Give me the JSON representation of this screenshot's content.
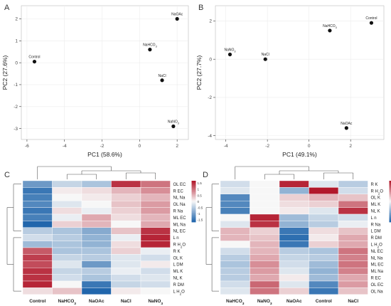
{
  "panel_labels": [
    "A",
    "B",
    "C",
    "D"
  ],
  "colors": {
    "panel_bg": "#ffffff",
    "grid": "#ececec",
    "axis": "#333333",
    "point": "#111111",
    "heat_low": "#2166ac",
    "heat_mid": "#f7f7f7",
    "heat_high": "#b2182b"
  },
  "chart_data": [
    {
      "type": "scatter",
      "panel": "A",
      "title": "",
      "xlabel": "PC1 (58.6%)",
      "ylabel": "PC2 (27.6%)",
      "xlim": [
        -6.3,
        2.6
      ],
      "ylim": [
        -3.5,
        2.6
      ],
      "xticks": [
        -6,
        -4,
        -2,
        0,
        2
      ],
      "yticks": [
        -3,
        -2,
        -1,
        0,
        1,
        2
      ],
      "grid": true,
      "points": [
        {
          "label": "NaOAc",
          "x": 2.0,
          "y": 2.0
        },
        {
          "label": "Control",
          "x": -5.6,
          "y": 0.05
        },
        {
          "label": "NaHCO3",
          "x": 0.55,
          "y": 0.6
        },
        {
          "label": "NaCl",
          "x": 1.2,
          "y": -0.8
        },
        {
          "label": "NaNO3",
          "x": 1.8,
          "y": -2.9
        }
      ]
    },
    {
      "type": "scatter",
      "panel": "B",
      "title": "",
      "xlabel": "PC1 (49.1%)",
      "ylabel": "PC2 (27.7%)",
      "xlim": [
        -4.5,
        3.6
      ],
      "ylim": [
        -4.2,
        2.8
      ],
      "xticks": [
        -4,
        -2,
        0,
        2
      ],
      "yticks": [
        -4,
        -2,
        0,
        2
      ],
      "grid": true,
      "points": [
        {
          "label": "Control",
          "x": 3.0,
          "y": 1.9
        },
        {
          "label": "NaHCO3",
          "x": 1.0,
          "y": 1.5
        },
        {
          "label": "NaNO3",
          "x": -3.8,
          "y": 0.25
        },
        {
          "label": "NaCl",
          "x": -2.1,
          "y": 0.0
        },
        {
          "label": "NaOAc",
          "x": 1.8,
          "y": -3.6
        }
      ]
    },
    {
      "type": "heatmap",
      "panel": "C",
      "title": "",
      "columns": [
        "Control",
        "NaHCO3",
        "NaOAc",
        "NaCl",
        "NaNO3"
      ],
      "rows": [
        "OL EC",
        "R EC",
        "NL Na",
        "OL Na",
        "R Na",
        "ML EC",
        "ML Na",
        "NL EC",
        "L n",
        "R H2O",
        "R K",
        "OL K",
        "L DM",
        "ML K",
        "NL K",
        "R DM",
        "L H2O"
      ],
      "values": [
        [
          -1.1,
          -0.4,
          -0.6,
          1.5,
          1.0
        ],
        [
          -1.5,
          0.1,
          0.2,
          0.5,
          0.8
        ],
        [
          -1.4,
          0.0,
          0.1,
          0.3,
          0.5
        ],
        [
          -1.3,
          -0.2,
          0.0,
          0.4,
          0.7
        ],
        [
          -1.5,
          0.2,
          -0.1,
          0.3,
          0.7
        ],
        [
          -1.4,
          -0.1,
          0.6,
          0.2,
          0.5
        ],
        [
          -1.7,
          0.3,
          0.5,
          0.0,
          0.6
        ],
        [
          -0.5,
          -0.6,
          -0.9,
          0.4,
          1.5
        ],
        [
          -0.3,
          -0.5,
          -0.8,
          -0.1,
          1.6
        ],
        [
          -0.7,
          -0.6,
          -0.8,
          0.2,
          1.6
        ],
        [
          1.2,
          -0.6,
          -0.6,
          0.3,
          -0.1
        ],
        [
          1.4,
          -0.4,
          -0.5,
          -0.2,
          -0.3
        ],
        [
          1.3,
          -0.2,
          -1.1,
          -0.2,
          0.1
        ],
        [
          1.5,
          -0.4,
          -0.5,
          -0.1,
          -0.3
        ],
        [
          1.5,
          -0.3,
          -0.6,
          -0.3,
          -0.2
        ],
        [
          1.6,
          0.0,
          -1.5,
          -0.4,
          -0.3
        ],
        [
          0.2,
          0.4,
          -1.7,
          0.1,
          0.0
        ]
      ],
      "legend_ticks": [
        1.5,
        1,
        0.5,
        0,
        -0.5,
        -1,
        -1.5
      ],
      "value_range": [
        -1.7,
        1.7
      ]
    },
    {
      "type": "heatmap",
      "panel": "D",
      "title": "",
      "columns": [
        "NaHCO3",
        "NaNO3",
        "NaOAc",
        "Control",
        "NaCl"
      ],
      "rows": [
        "R K",
        "R H2O",
        "OL K",
        "ML K",
        "NL K",
        "L n",
        "R Na",
        "L DM",
        "R DM",
        "L H2O",
        "NL EC",
        "NL Na",
        "ML EC",
        "ML Na",
        "R EC",
        "OL EC",
        "OL Na"
      ],
      "values": [
        [
          -0.3,
          0.0,
          1.6,
          -0.2,
          -0.5
        ],
        [
          -0.2,
          0.0,
          -0.8,
          1.7,
          -0.3
        ],
        [
          -1.3,
          0.0,
          0.3,
          0.5,
          0.4
        ],
        [
          -1.3,
          0.0,
          0.2,
          0.3,
          1.0
        ],
        [
          -1.4,
          0.0,
          0.1,
          -0.2,
          1.5
        ],
        [
          0.0,
          1.6,
          -0.7,
          -0.4,
          -0.3
        ],
        [
          -0.2,
          1.5,
          -0.8,
          -0.5,
          -0.1
        ],
        [
          0.5,
          0.3,
          -1.5,
          0.2,
          0.4
        ],
        [
          0.5,
          0.4,
          -1.6,
          0.1,
          0.6
        ],
        [
          0.0,
          0.5,
          -1.5,
          0.3,
          0.6
        ],
        [
          -0.3,
          0.5,
          -0.5,
          -0.6,
          1.0
        ],
        [
          -0.5,
          0.6,
          -0.4,
          -0.5,
          0.9
        ],
        [
          -0.6,
          0.8,
          -0.3,
          -0.7,
          1.0
        ],
        [
          -0.5,
          0.7,
          -0.2,
          -0.8,
          0.9
        ],
        [
          -0.5,
          0.6,
          0.1,
          -0.7,
          0.6
        ],
        [
          -0.3,
          1.1,
          -0.2,
          -1.3,
          0.7
        ],
        [
          -0.2,
          1.0,
          0.3,
          -1.5,
          0.4
        ]
      ],
      "legend_ticks": [
        1.5,
        1,
        0.5,
        0,
        -0.5,
        -1,
        -1.5
      ],
      "value_range": [
        -1.7,
        1.7
      ]
    }
  ]
}
